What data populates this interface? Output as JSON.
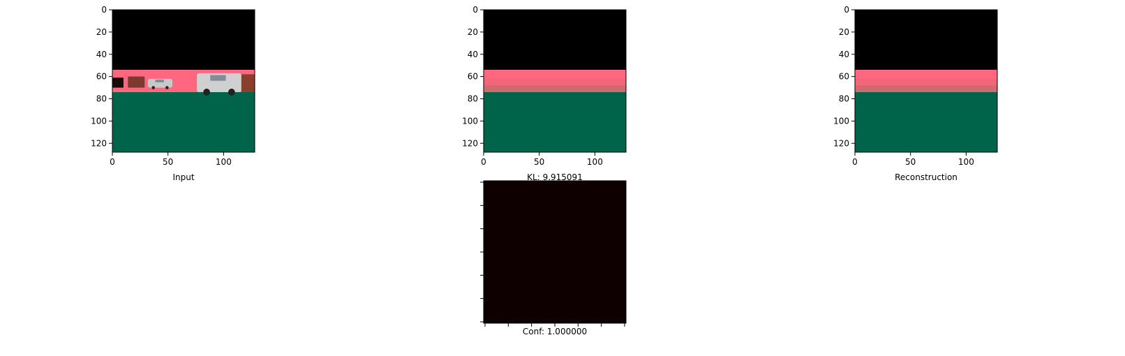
{
  "chart_data": [
    {
      "type": "image",
      "xlabel": "Input",
      "x_ticks": [
        "0",
        "50",
        "100"
      ],
      "y_ticks": [
        "0",
        "20",
        "40",
        "60",
        "80",
        "100",
        "120"
      ],
      "xlim": [
        0,
        128
      ],
      "ylim": [
        0,
        128
      ],
      "bands": [
        {
          "from": 0,
          "to": 54,
          "color": "#000000"
        },
        {
          "from": 54,
          "to": 74,
          "color": "#ff6680"
        },
        {
          "from": 74,
          "to": 128,
          "color": "#00644b"
        }
      ],
      "objects": [
        {
          "name": "dark-block",
          "x0": 0,
          "x1": 10,
          "y0": 61,
          "y1": 70,
          "color": "#1a0a0a"
        },
        {
          "name": "brown-block",
          "x0": 14,
          "x1": 29,
          "y0": 60,
          "y1": 70,
          "color": "#7a3b2e"
        },
        {
          "name": "car",
          "x0": 32,
          "x1": 54,
          "y0": 62,
          "y1": 70,
          "color": "#c8c8c8"
        },
        {
          "name": "car",
          "x0": 76,
          "x1": 116,
          "y0": 57,
          "y1": 74,
          "color": "#d0d0d0"
        },
        {
          "name": "brown-block",
          "x0": 116,
          "x1": 128,
          "y0": 58,
          "y1": 74,
          "color": "#8a3e2c"
        }
      ]
    },
    {
      "type": "image",
      "xlabel": "KL: 9.915091",
      "x_ticks": [
        "0",
        "50",
        "100"
      ],
      "y_ticks": [
        "0",
        "20",
        "40",
        "60",
        "80",
        "100",
        "120"
      ],
      "xlim": [
        0,
        128
      ],
      "ylim": [
        0,
        128
      ],
      "bands": [
        {
          "from": 0,
          "to": 54,
          "color": "#000000"
        },
        {
          "from": 54,
          "to": 74,
          "color": "#ff6680"
        },
        {
          "from": 74,
          "to": 128,
          "color": "#00644b"
        }
      ],
      "objects": []
    },
    {
      "type": "image",
      "xlabel": "Reconstruction",
      "x_ticks": [
        "0",
        "50",
        "100"
      ],
      "y_ticks": [
        "0",
        "20",
        "40",
        "60",
        "80",
        "100",
        "120"
      ],
      "xlim": [
        0,
        128
      ],
      "ylim": [
        0,
        128
      ],
      "bands": [
        {
          "from": 0,
          "to": 54,
          "color": "#000000"
        },
        {
          "from": 54,
          "to": 74,
          "color": "#ff6680"
        },
        {
          "from": 74,
          "to": 128,
          "color": "#00644b"
        }
      ],
      "objects": []
    },
    {
      "type": "heatmap",
      "xlabel": "Conf: 1.000000",
      "x_ticks": [
        "",
        "",
        "",
        "",
        "",
        "",
        ""
      ],
      "y_ticks": [
        "",
        "",
        "",
        "",
        "",
        "",
        ""
      ],
      "xlim": [
        0,
        128
      ],
      "ylim": [
        0,
        128
      ],
      "bands": [
        {
          "from": 0,
          "to": 128,
          "color": "#0e0000"
        }
      ],
      "objects": []
    }
  ]
}
